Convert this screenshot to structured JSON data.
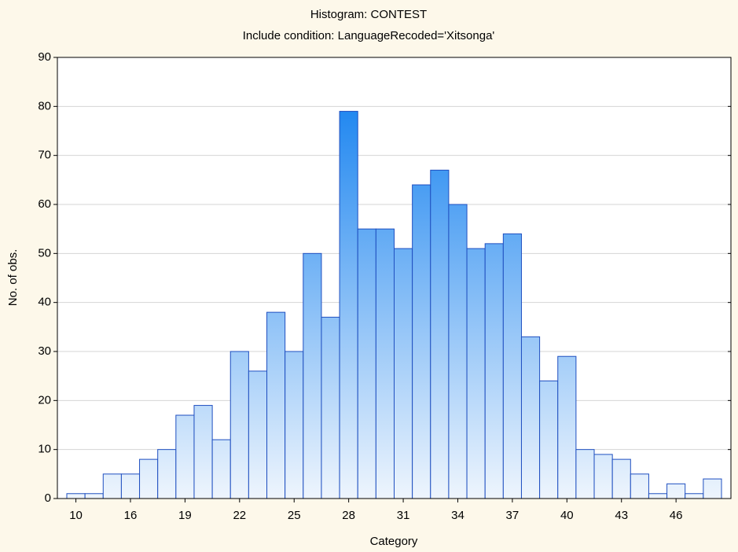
{
  "chart_data": {
    "type": "bar",
    "title": "Histogram: CONTEST",
    "subtitle": "Include condition: LanguageRecoded='Xitsonga'",
    "x_label": "Category",
    "y_label": "No. of obs.",
    "categories": [
      "10",
      null,
      null,
      "16",
      null,
      null,
      "19",
      null,
      null,
      "22",
      null,
      null,
      "25",
      null,
      null,
      "28",
      null,
      null,
      "31",
      null,
      null,
      "34",
      null,
      null,
      "37",
      null,
      null,
      "40",
      null,
      null,
      "43",
      null,
      null,
      "46",
      null,
      null
    ],
    "values": [
      1,
      1,
      5,
      5,
      8,
      10,
      17,
      19,
      12,
      30,
      26,
      38,
      30,
      50,
      37,
      79,
      55,
      55,
      51,
      64,
      67,
      60,
      51,
      52,
      54,
      33,
      24,
      29,
      10,
      9,
      8,
      5,
      1,
      3,
      1,
      4
    ],
    "color": "#1e86f0",
    "ylim": [
      0,
      90
    ],
    "yticks": [
      0,
      10,
      20,
      30,
      40,
      50,
      60,
      70,
      80,
      90
    ],
    "grid": true
  }
}
